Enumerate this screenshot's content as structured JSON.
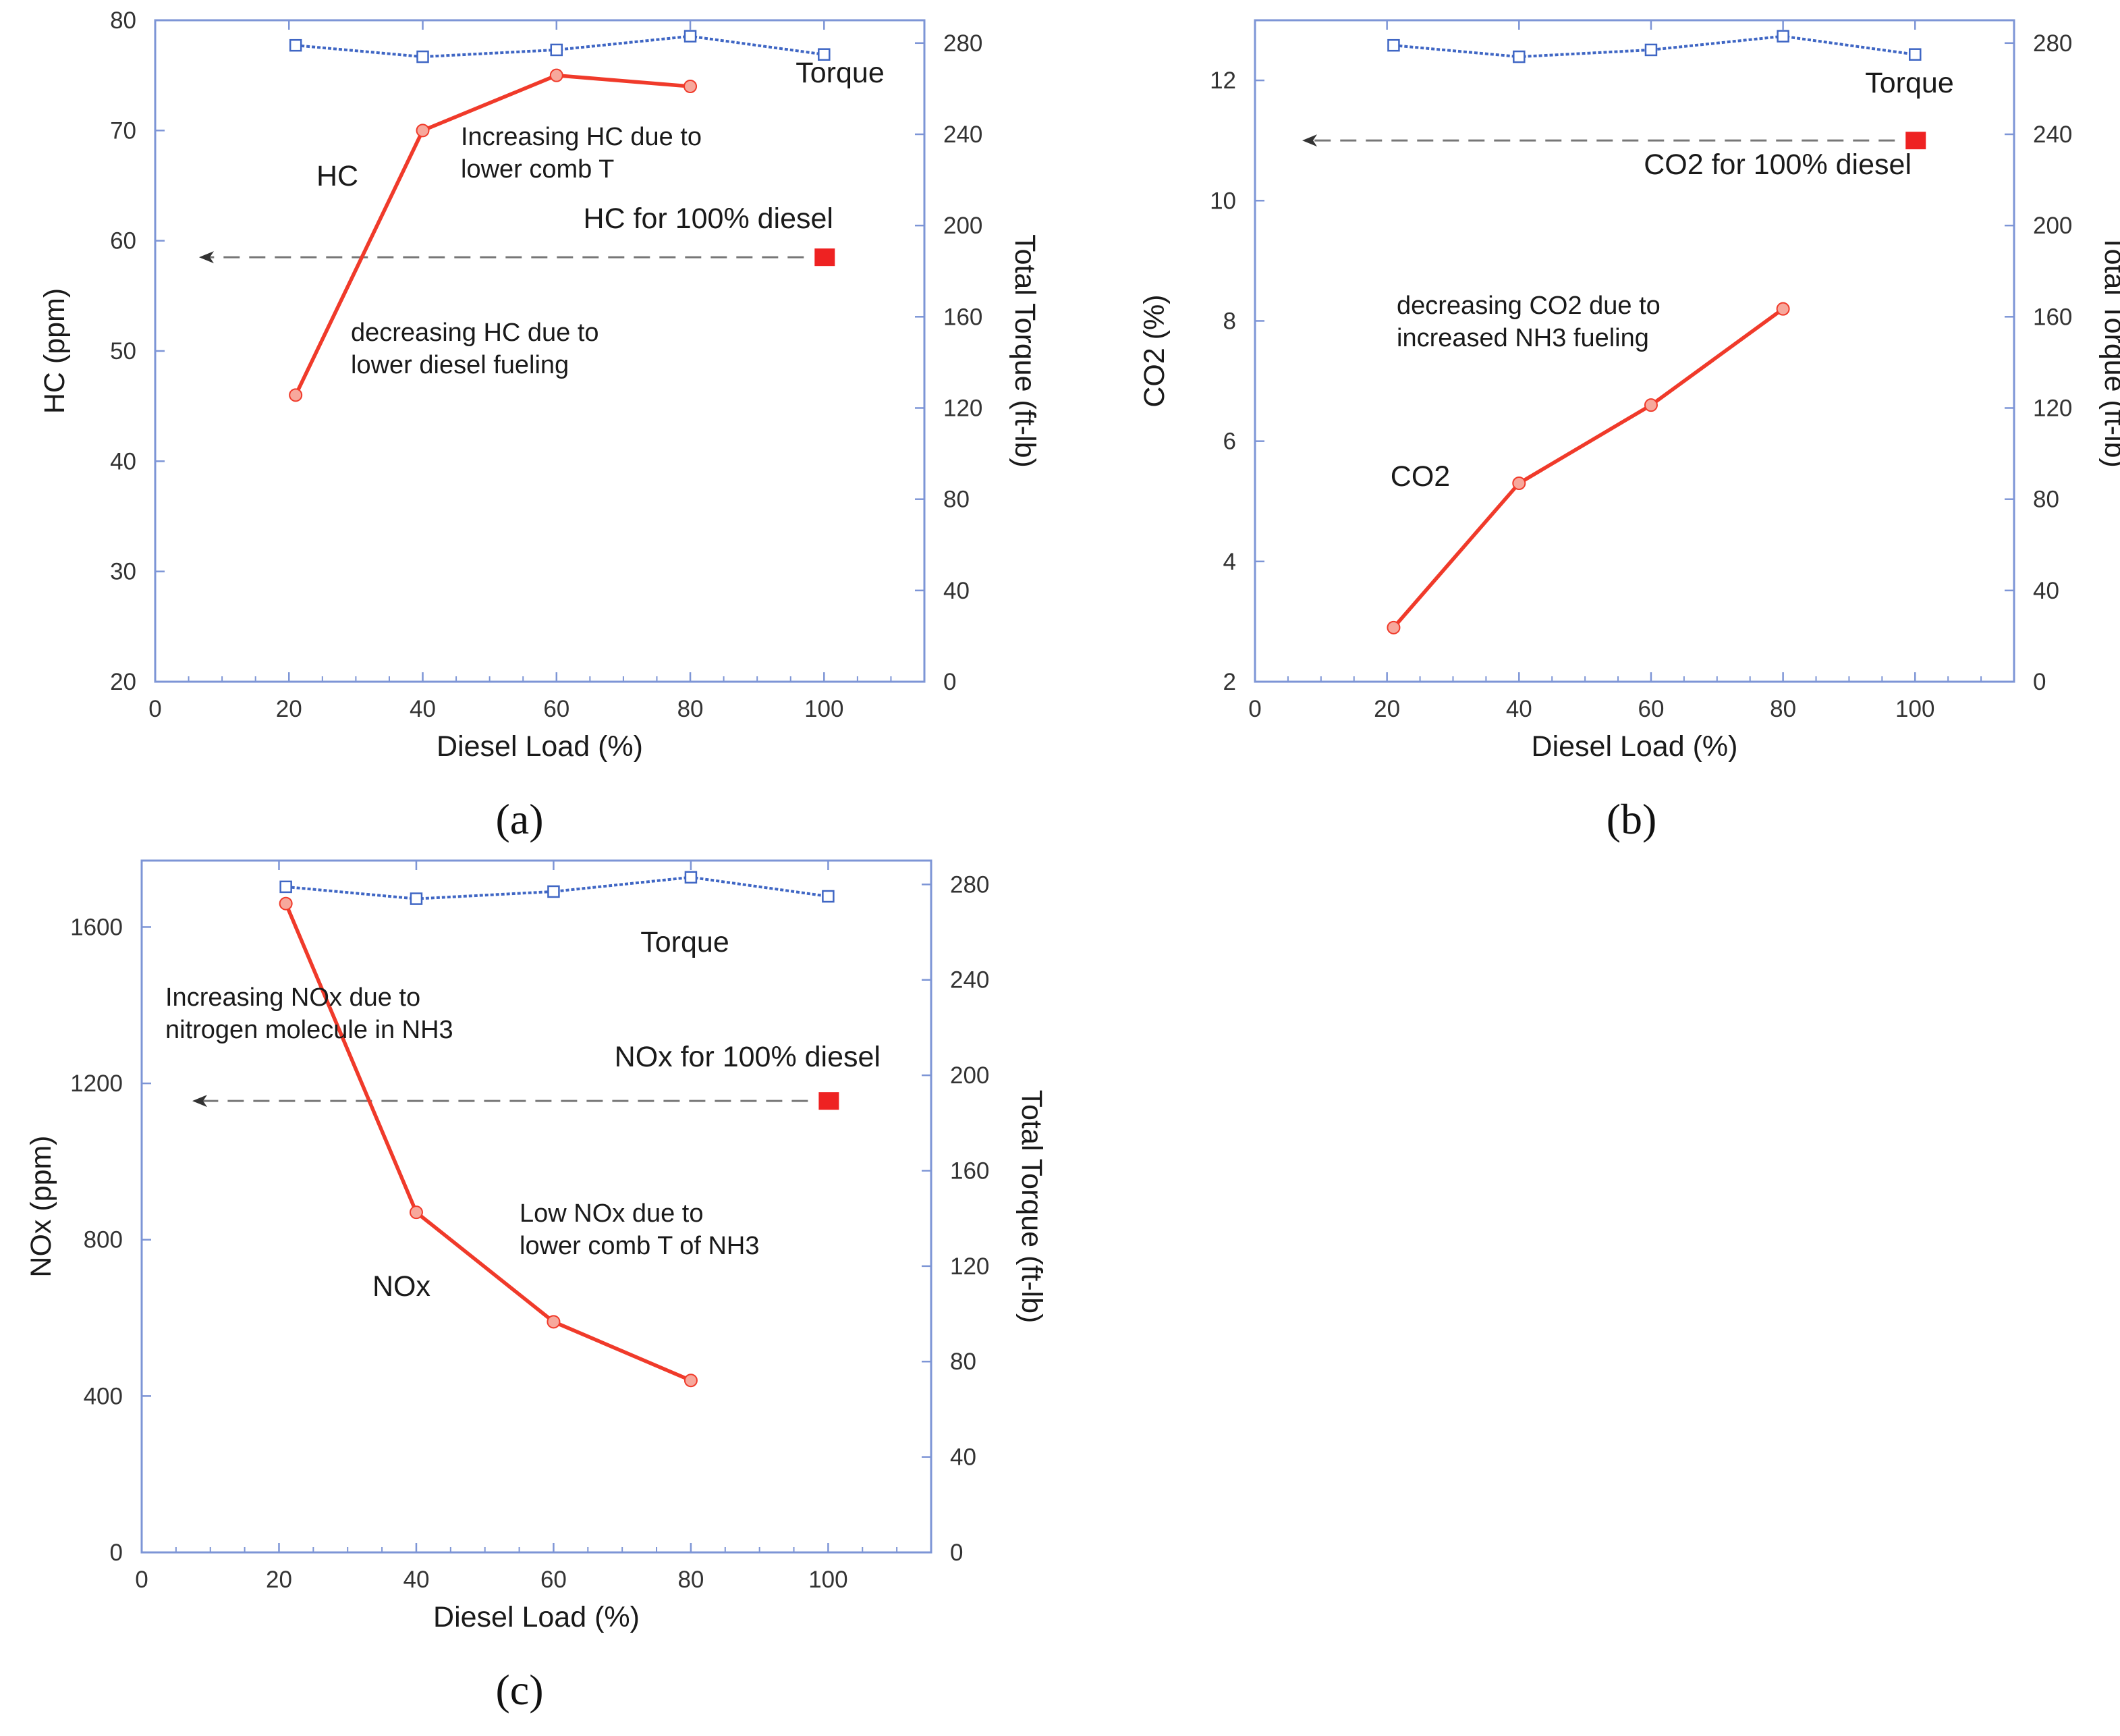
{
  "colors": {
    "emission": "#f03a2a",
    "torque": "#3f66c4",
    "axis": "#7d95d6",
    "reference": "#ee2222",
    "dashed": "#777777"
  },
  "chart_data": [
    {
      "panel": "a",
      "type": "line",
      "caption": "(a)",
      "xlabel": "Diesel Load (%)",
      "ylabel": "HC (ppm)",
      "y2label": "Total Torque (ft-lb)",
      "xlim": [
        0,
        115
      ],
      "ylim": [
        20,
        80
      ],
      "y2lim": [
        0,
        290
      ],
      "xticks": [
        0,
        20,
        40,
        60,
        80,
        100
      ],
      "yticks": [
        20,
        30,
        40,
        50,
        60,
        70,
        80
      ],
      "y2ticks": [
        0,
        40,
        80,
        120,
        160,
        200,
        240,
        280
      ],
      "series": [
        {
          "name": "HC",
          "axis": "left",
          "x": [
            21,
            40,
            60,
            80
          ],
          "values": [
            46,
            70,
            75,
            74
          ]
        },
        {
          "name": "Torque",
          "axis": "right",
          "x": [
            21,
            40,
            60,
            80,
            100
          ],
          "values": [
            279,
            274,
            277,
            283,
            275
          ]
        }
      ],
      "reference": {
        "label": "HC for 100% diesel",
        "x": 100,
        "value": 58.5
      },
      "annotations": [
        {
          "text": [
            "Increasing HC due to",
            "lower comb T"
          ]
        },
        {
          "text": [
            "decreasing HC due to",
            "lower diesel fueling"
          ]
        }
      ]
    },
    {
      "panel": "b",
      "type": "line",
      "caption": "(b)",
      "xlabel": "Diesel Load (%)",
      "ylabel": "CO2 (%)",
      "y2label": "Total Torque (ft-lb)",
      "xlim": [
        0,
        115
      ],
      "ylim": [
        2,
        13
      ],
      "y2lim": [
        0,
        290
      ],
      "xticks": [
        0,
        20,
        40,
        60,
        80,
        100
      ],
      "yticks": [
        2,
        4,
        6,
        8,
        10,
        12
      ],
      "y2ticks": [
        0,
        40,
        80,
        120,
        160,
        200,
        240,
        280
      ],
      "series": [
        {
          "name": "CO2",
          "axis": "left",
          "x": [
            21,
            40,
            60,
            80
          ],
          "values": [
            2.9,
            5.3,
            6.6,
            8.2
          ]
        },
        {
          "name": "Torque",
          "axis": "right",
          "x": [
            21,
            40,
            60,
            80,
            100
          ],
          "values": [
            279,
            274,
            277,
            283,
            275
          ]
        }
      ],
      "reference": {
        "label": "CO2 for 100% diesel",
        "x": 100,
        "value": 11.0
      },
      "annotations": [
        {
          "text": [
            "decreasing CO2 due to",
            "increased NH3 fueling"
          ]
        }
      ]
    },
    {
      "panel": "c",
      "type": "line",
      "caption": "(c)",
      "xlabel": "Diesel Load (%)",
      "ylabel": "NOx (ppm)",
      "y2label": "Total Torque (ft-lb)",
      "xlim": [
        0,
        115
      ],
      "ylim": [
        0,
        1770
      ],
      "y2lim": [
        0,
        290
      ],
      "xticks": [
        0,
        20,
        40,
        60,
        80,
        100
      ],
      "yticks": [
        0,
        400,
        800,
        1200,
        1600
      ],
      "y2ticks": [
        0,
        40,
        80,
        120,
        160,
        200,
        240,
        280
      ],
      "series": [
        {
          "name": "NOx",
          "axis": "left",
          "x": [
            21,
            40,
            60,
            80
          ],
          "values": [
            1660,
            870,
            590,
            440
          ]
        },
        {
          "name": "Torque",
          "axis": "right",
          "x": [
            21,
            40,
            60,
            80,
            100
          ],
          "values": [
            279,
            274,
            277,
            283,
            275
          ]
        }
      ],
      "reference": {
        "label": "NOx for 100% diesel",
        "x": 100,
        "value": 1155
      },
      "annotations": [
        {
          "text": [
            "Increasing NOx due to",
            "nitrogen molecule in NH3"
          ]
        },
        {
          "text": [
            "Low NOx due to",
            "lower comb T of NH3"
          ]
        }
      ]
    }
  ]
}
